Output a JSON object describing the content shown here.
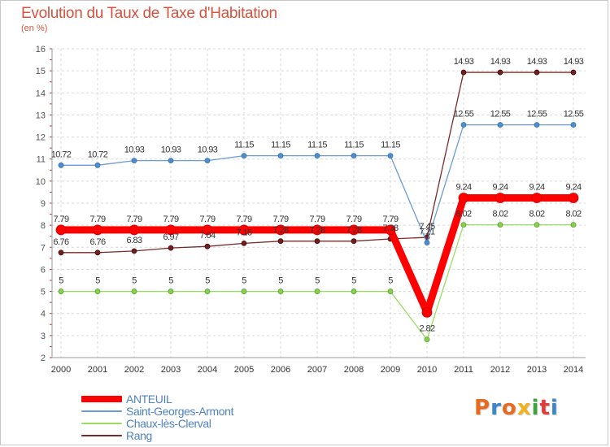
{
  "title": "Evolution du Taux de Taxe d'Habitation",
  "subtitle": "(en %)",
  "logo_text": "Proxiti",
  "logo_colors": [
    "#e86a1e",
    "#3a86c6",
    "#e86a1e",
    "#f0b11c",
    "#3fa33f",
    "#e03c3c",
    "#3a86c6"
  ],
  "chart_data": {
    "type": "line",
    "x": [
      2000,
      2001,
      2002,
      2003,
      2004,
      2005,
      2006,
      2007,
      2008,
      2009,
      2010,
      2011,
      2012,
      2013,
      2014
    ],
    "ylim": [
      2,
      16
    ],
    "yticks": [
      2,
      3,
      4,
      5,
      6,
      7,
      8,
      9,
      10,
      11,
      12,
      13,
      14,
      15,
      16
    ],
    "grid": true,
    "legend_position": "bottom-left",
    "series": [
      {
        "name": "ANTEUIL",
        "color": "#ff0000",
        "values": [
          7.79,
          7.79,
          7.79,
          7.79,
          7.79,
          7.79,
          7.79,
          7.79,
          7.79,
          7.79,
          4.05,
          9.24,
          9.24,
          9.24,
          9.24
        ],
        "labels": [
          "7.79",
          "7.79",
          "7.79",
          "7.79",
          "7.79",
          "7.79",
          "7.79",
          "7.79",
          "7.79",
          "7.79",
          "",
          "9.24",
          "9.24",
          "9.24",
          "9.24"
        ]
      },
      {
        "name": "Saint-Georges-Armont",
        "color": "#6b9bd2",
        "values": [
          10.72,
          10.72,
          10.93,
          10.93,
          10.93,
          11.15,
          11.15,
          11.15,
          11.15,
          11.15,
          7.21,
          12.55,
          12.55,
          12.55,
          12.55
        ],
        "labels": [
          "10.72",
          "10.72",
          "10.93",
          "10.93",
          "10.93",
          "11.15",
          "11.15",
          "11.15",
          "11.15",
          "11.15",
          "7.21",
          "12.55",
          "12.55",
          "12.55",
          "12.55"
        ]
      },
      {
        "name": "Chaux-lès-Clerval",
        "color": "#99dd66",
        "values": [
          5,
          5,
          5,
          5,
          5,
          5,
          5,
          5,
          5,
          5,
          2.82,
          8.02,
          8.02,
          8.02,
          8.02
        ],
        "labels": [
          "5",
          "5",
          "5",
          "5",
          "5",
          "5",
          "5",
          "5",
          "5",
          "5",
          "2.82",
          "8.02",
          "8.02",
          "8.02",
          "8.02"
        ]
      },
      {
        "name": "Rang",
        "color": "#7a2a2a",
        "values": [
          6.76,
          6.76,
          6.83,
          6.97,
          7.04,
          7.18,
          7.28,
          7.28,
          7.28,
          7.38,
          7.45,
          14.93,
          14.93,
          14.93,
          14.93
        ],
        "labels": [
          "6.76",
          "6.76",
          "6.83",
          "6.97",
          "7.04",
          "7.18",
          "7.28",
          "7.28",
          "7.28",
          "7.38",
          "7.45",
          "14.93",
          "14.93",
          "14.93",
          "14.93"
        ]
      }
    ]
  }
}
